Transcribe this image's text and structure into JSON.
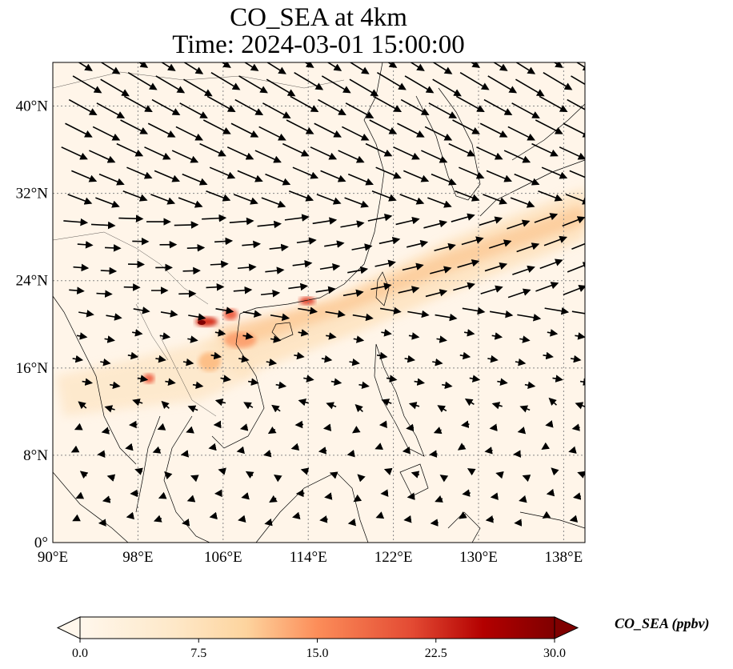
{
  "title": {
    "line1": "CO_SEA at 4km",
    "line2": "Time: 2024-03-01 15:00:00"
  },
  "map": {
    "projection": "PlateCarree",
    "lon_range": [
      90,
      140
    ],
    "lat_range": [
      0,
      44
    ],
    "lat_ticks": [
      {
        "lat": 0,
        "label": "0°"
      },
      {
        "lat": 8,
        "label": "8°N"
      },
      {
        "lat": 16,
        "label": "16°N"
      },
      {
        "lat": 24,
        "label": "24°N"
      },
      {
        "lat": 32,
        "label": "32°N"
      },
      {
        "lat": 40,
        "label": "40°N"
      }
    ],
    "lon_ticks": [
      {
        "lon": 90,
        "label": "90°E"
      },
      {
        "lon": 98,
        "label": "98°E"
      },
      {
        "lon": 106,
        "label": "106°E"
      },
      {
        "lon": 114,
        "label": "114°E"
      },
      {
        "lon": 122,
        "label": "122°E"
      },
      {
        "lon": 130,
        "label": "130°E"
      },
      {
        "lon": 138,
        "label": "138°E"
      }
    ],
    "gridlines": true,
    "field": "CO_SEA",
    "background_color": "#fff5e9",
    "wind_vectors": true
  },
  "colorbar": {
    "label": "CO_SEA (ppbv)",
    "cmap": "OrRd",
    "min": 0.0,
    "max": 30.0,
    "extend": "both",
    "ticks": [
      "0.0",
      "7.5",
      "15.0",
      "22.5",
      "30.0"
    ],
    "tick_values": [
      0,
      7.5,
      15,
      22.5,
      30
    ]
  },
  "colors": {
    "low": "#fff7ec",
    "mid": "#fc8d59",
    "high": "#7f0000"
  }
}
